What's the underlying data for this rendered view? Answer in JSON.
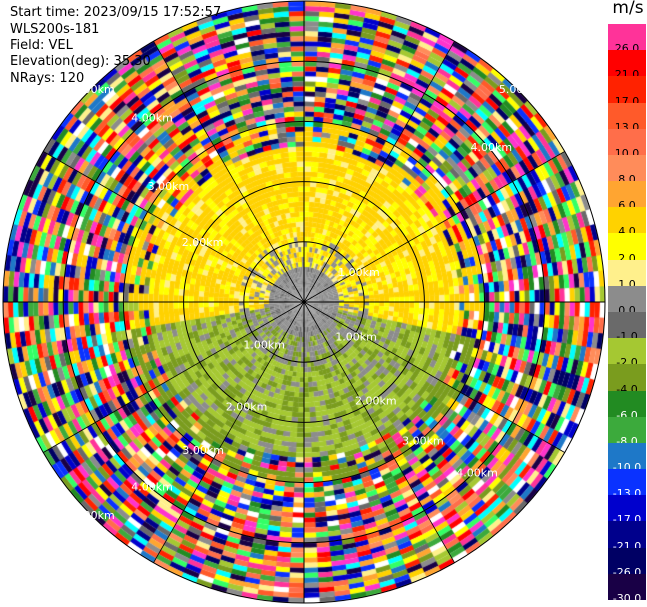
{
  "header": {
    "start_time": "Start time: 2023/09/15 17:52:57",
    "instrument": "WLS200s-181",
    "field": "Field: VEL",
    "elevation": "Elevation(deg): 35.30",
    "nrays": "NRays: 120"
  },
  "colorbar": {
    "unit": "m/s",
    "levels": [
      {
        "label": "26.0",
        "color": "#ff3399"
      },
      {
        "label": "21.0",
        "color": "#ff0000"
      },
      {
        "label": "17.0",
        "color": "#ff2200"
      },
      {
        "label": "13.0",
        "color": "#ff5a2a"
      },
      {
        "label": "10.0",
        "color": "#ff6e4a"
      },
      {
        "label": "8.0",
        "color": "#ff8c5a"
      },
      {
        "label": "6.0",
        "color": "#ffa531"
      },
      {
        "label": "4.0",
        "color": "#ffd200"
      },
      {
        "label": "2.0",
        "color": "#ffff00"
      },
      {
        "label": "1.0",
        "color": "#fff08c"
      },
      {
        "label": "0.0",
        "color": "#8c8c8c"
      },
      {
        "label": "-1.0",
        "color": "#6a6a6a"
      },
      {
        "label": "-2.0",
        "color": "#a5c832"
      },
      {
        "label": "-4.0",
        "color": "#7a9c1e"
      },
      {
        "label": "-6.0",
        "color": "#228b22"
      },
      {
        "label": "-8.0",
        "color": "#3caa3c"
      },
      {
        "label": "-10.0",
        "color": "#1e78c8"
      },
      {
        "label": "-13.0",
        "color": "#0a32ff"
      },
      {
        "label": "-17.0",
        "color": "#0000cd"
      },
      {
        "label": "-21.0",
        "color": "#00008c"
      },
      {
        "label": "-26.0",
        "color": "#000064"
      },
      {
        "label": "-30.0",
        "color": "#190046"
      }
    ]
  },
  "chart_data": {
    "type": "heatmap",
    "projection": "polar-ppi",
    "field": "VEL",
    "units": "m/s",
    "nrays": 120,
    "elevation_deg": 35.3,
    "range_rings_km": [
      1.0,
      2.0,
      3.0,
      4.0,
      5.0
    ],
    "ring_labels": [
      {
        "text": "1.00km",
        "ring_km": 1.0,
        "azimuth_deg": 225
      },
      {
        "text": "1.00km",
        "ring_km": 1.0,
        "azimuth_deg": 60
      },
      {
        "text": "1.00km",
        "ring_km": 1.0,
        "azimuth_deg": 125
      },
      {
        "text": "2.00km",
        "ring_km": 2.0,
        "azimuth_deg": 300
      },
      {
        "text": "2.00km",
        "ring_km": 2.0,
        "azimuth_deg": 145
      },
      {
        "text": "2.00km",
        "ring_km": 2.0,
        "azimuth_deg": 210
      },
      {
        "text": "3.00km",
        "ring_km": 3.0,
        "azimuth_deg": 310
      },
      {
        "text": "3.00km",
        "ring_km": 3.0,
        "azimuth_deg": 215
      },
      {
        "text": "3.00km",
        "ring_km": 3.0,
        "azimuth_deg": 140
      },
      {
        "text": "4.00km",
        "ring_km": 4.0,
        "azimuth_deg": 320
      },
      {
        "text": "4.00km",
        "ring_km": 4.0,
        "azimuth_deg": 50
      },
      {
        "text": "4.00km",
        "ring_km": 4.0,
        "azimuth_deg": 135
      },
      {
        "text": "4.00km",
        "ring_km": 4.0,
        "azimuth_deg": 220
      },
      {
        "text": "5.00km",
        "ring_km": 5.0,
        "azimuth_deg": 315
      },
      {
        "text": "5.00km",
        "ring_km": 5.0,
        "azimuth_deg": 225
      },
      {
        "text": "5.00km",
        "ring_km": 5.0,
        "azimuth_deg": 45
      }
    ],
    "regions": [
      {
        "name": "near-field-toward",
        "range_km": [
          0.0,
          0.6
        ],
        "dominant_ms": 0.0
      },
      {
        "name": "north-half",
        "azimuth_deg": [
          270,
          90
        ],
        "range_km": [
          0.6,
          2.6
        ],
        "dominant_ms": 2.0
      },
      {
        "name": "south-half",
        "azimuth_deg": [
          90,
          270
        ],
        "range_km": [
          0.6,
          2.6
        ],
        "dominant_ms": -2.0
      },
      {
        "name": "far-field-noise",
        "range_km": [
          3.0,
          5.0
        ],
        "dominant_ms": null
      }
    ]
  }
}
